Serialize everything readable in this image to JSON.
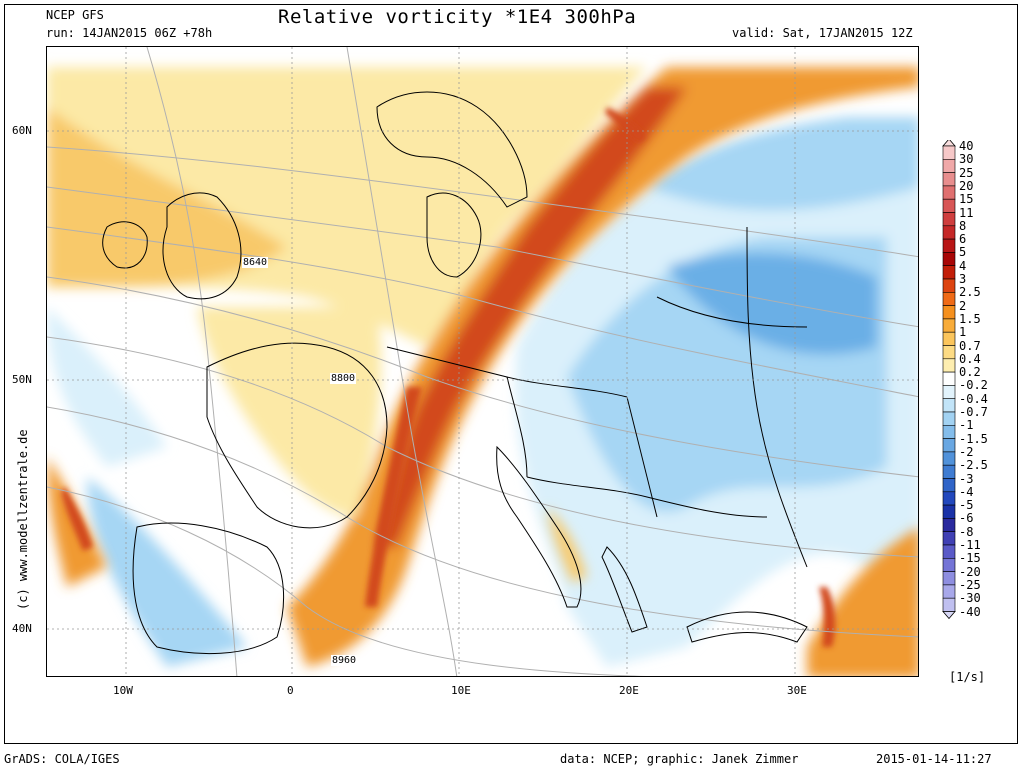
{
  "header": {
    "model": "NCEP GFS",
    "run": "run: 14JAN2015 06Z +78h",
    "title": "Relative vorticity *1E4 300hPa",
    "valid": "valid: Sat, 17JAN2015 12Z"
  },
  "map": {
    "lat_labels": [
      "60N",
      "50N",
      "40N"
    ],
    "lon_labels": [
      "10W",
      "0",
      "10E",
      "20E",
      "30E"
    ],
    "contour_labels": [
      "8640",
      "8800",
      "8960"
    ],
    "side_text": "(c) www.modellzentrale.de",
    "colors": {
      "pos_strong": "#d24a1c",
      "pos_mid": "#f09a32",
      "pos_low": "#f8c96a",
      "pos_faint": "#fce9a6",
      "neg_faint": "#daf0fb",
      "neg_low": "#a6d6f4",
      "neg_mid": "#6aafe6",
      "contour": "#b0b0b0",
      "border": "#000000"
    }
  },
  "legend": {
    "units": "[1/s]",
    "levels": [
      "40",
      "30",
      "25",
      "20",
      "15",
      "11",
      "8",
      "6",
      "5",
      "4",
      "3",
      "2.5",
      "2",
      "1.5",
      "1",
      "0.7",
      "0.4",
      "0.2",
      "-0.2",
      "-0.4",
      "-0.7",
      "-1",
      "-1.5",
      "-2",
      "-2.5",
      "-3",
      "-4",
      "-5",
      "-6",
      "-8",
      "-11",
      "-15",
      "-20",
      "-25",
      "-30",
      "-40"
    ],
    "colors": [
      "#f6c8c8",
      "#f0a8a8",
      "#e88e8e",
      "#e07070",
      "#d85656",
      "#cf3e3e",
      "#c52828",
      "#b81616",
      "#a80606",
      "#c21e08",
      "#dd4410",
      "#ef6a16",
      "#f5901e",
      "#f8ac3a",
      "#fbc55c",
      "#fddb84",
      "#feeeb0",
      "#ffffff",
      "#e2f3fc",
      "#c2e4f8",
      "#a2d2f2",
      "#84bdeb",
      "#69a7e2",
      "#5192da",
      "#3f7cd2",
      "#2f64c8",
      "#2248bd",
      "#1a32a8",
      "#2a2a9e",
      "#4040b4",
      "#5a5ac8",
      "#7474d6",
      "#8e8ee0",
      "#a8a8ea",
      "#c0c0f0"
    ]
  },
  "footer": {
    "left": "GrADS: COLA/IGES",
    "center": "data: NCEP; graphic: Janek Zimmer",
    "right": "2015-01-14-11:27"
  }
}
